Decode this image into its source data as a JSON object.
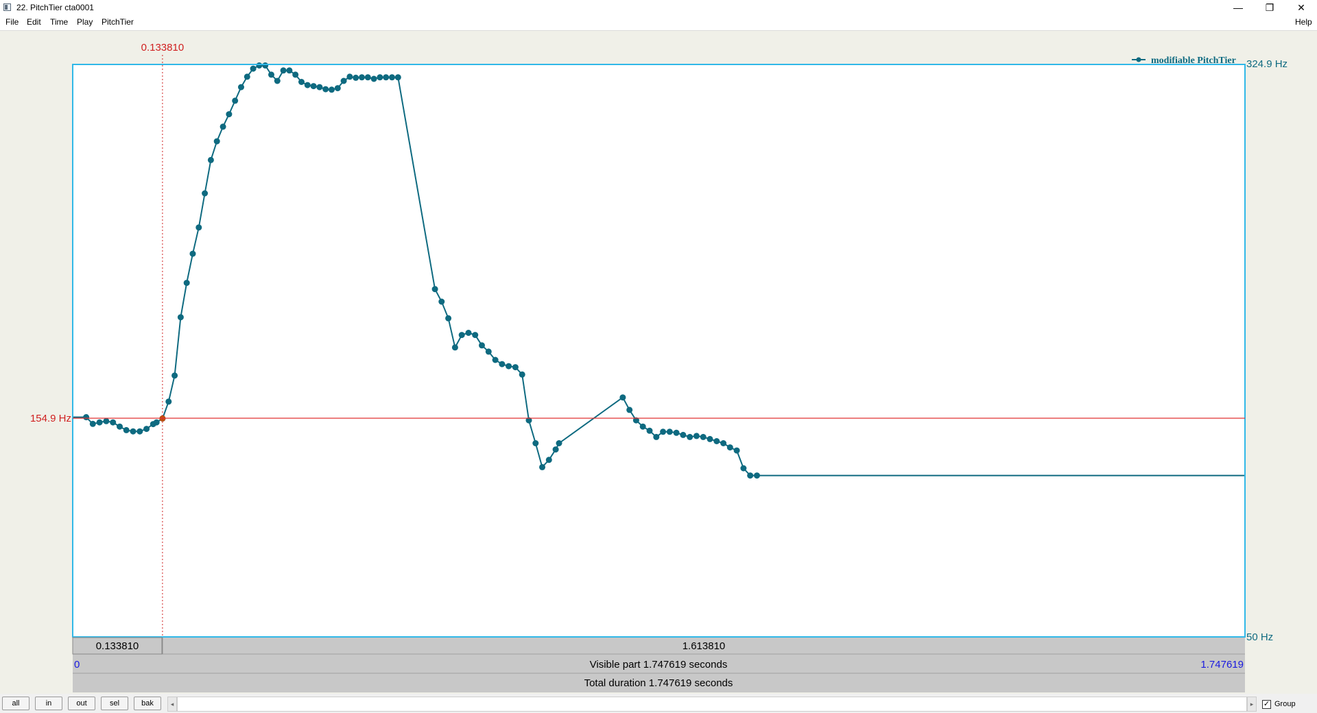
{
  "window": {
    "title": "22. PitchTier cta0001",
    "minimize_glyph": "—",
    "maximize_glyph": "❐",
    "close_glyph": "✕"
  },
  "menu": {
    "items": [
      "File",
      "Edit",
      "Time",
      "Play",
      "PitchTier"
    ],
    "help": "Help"
  },
  "editor": {
    "legend": "modifiable PitchTier",
    "ymax_label": "324.9 Hz",
    "ymin_label": "50 Hz",
    "cursor_hz_label": "154.9 Hz",
    "cursor_time_top": "0.133810",
    "left_segment": "0.133810",
    "right_segment": "1.613810",
    "visible_start": "0",
    "visible_end": "1.747619",
    "visible_part": "Visible part 1.747619 seconds",
    "total_duration": "Total duration 1.747619 seconds",
    "colors": {
      "curve": "#0e6a80",
      "cursor": "#d02020",
      "frame": "#30b8e8",
      "selected_point": "#c05010"
    }
  },
  "chart_data": {
    "type": "line",
    "series": [
      {
        "x": [
          0.02,
          0.03,
          0.04,
          0.05,
          0.06,
          0.07,
          0.08,
          0.09,
          0.1,
          0.11,
          0.12,
          0.125,
          0.134,
          0.143,
          0.152,
          0.161,
          0.17,
          0.179,
          0.188,
          0.197,
          0.206,
          0.215,
          0.224,
          0.233,
          0.242,
          0.251,
          0.26,
          0.269,
          0.278,
          0.287,
          0.296,
          0.305,
          0.314,
          0.323,
          0.332,
          0.341,
          0.35,
          0.359,
          0.368,
          0.377,
          0.386,
          0.395,
          0.404,
          0.413,
          0.422,
          0.431,
          0.44,
          0.449,
          0.458,
          0.467,
          0.476,
          0.485,
          0.54,
          0.55,
          0.56,
          0.57,
          0.58,
          0.59,
          0.6,
          0.61,
          0.62,
          0.63,
          0.64,
          0.65,
          0.66,
          0.67,
          0.68,
          0.69,
          0.7,
          0.71,
          0.72,
          0.725,
          0.82,
          0.83,
          0.84,
          0.85,
          0.86,
          0.87,
          0.88,
          0.89,
          0.9,
          0.91,
          0.92,
          0.93,
          0.94,
          0.95,
          0.96,
          0.97,
          0.98,
          0.99,
          1.0,
          1.01,
          1.02
        ],
        "y": [
          155.5,
          152.3,
          153.0,
          153.6,
          153.0,
          151.0,
          149.3,
          148.7,
          148.7,
          149.9,
          152.2,
          153.0,
          154.9,
          163.0,
          175.5,
          203.5,
          220.0,
          234.0,
          246.6,
          263.0,
          279.0,
          288.0,
          295.0,
          301.0,
          307.5,
          314.0,
          319.0,
          322.9,
          324.4,
          324.4,
          320.0,
          317.0,
          322.0,
          322.0,
          320.0,
          316.5,
          315.0,
          314.5,
          314.0,
          313.0,
          312.8,
          313.5,
          317.0,
          319.0,
          318.5,
          318.7,
          318.7,
          318.0,
          318.7,
          318.7,
          318.7,
          318.7,
          217.0,
          211.0,
          203.0,
          189.0,
          195.0,
          196.0,
          195.0,
          190.0,
          187.0,
          183.0,
          181.0,
          180.0,
          179.5,
          176.0,
          154.0,
          143.0,
          131.5,
          135.0,
          140.0,
          143.0,
          165.0,
          159.0,
          154.0,
          151.0,
          149.0,
          146.0,
          148.5,
          148.5,
          148.0,
          147.0,
          146.0,
          146.5,
          146.0,
          145.0,
          144.0,
          143.0,
          141.0,
          139.5,
          131.0,
          127.5,
          127.5
        ]
      }
    ],
    "xlim": [
      0,
      1.747619
    ],
    "ylim": [
      50,
      324.9
    ],
    "selected_point": {
      "x": 0.13381,
      "y": 154.9
    },
    "cursor_time": 0.13381,
    "cursor_hz": 154.9
  }
}
